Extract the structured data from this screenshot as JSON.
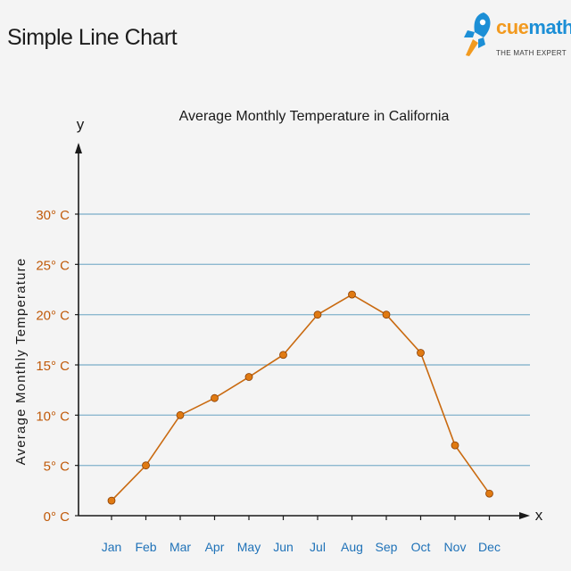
{
  "header": {
    "title": "Simple Line Chart"
  },
  "logo": {
    "word_part1": "cue",
    "word_part2": "math",
    "tagline": "THE MATH EXPERT",
    "colors": {
      "orange": "#f29a1f",
      "blue": "#1c8fd6"
    }
  },
  "chart_data": {
    "type": "line",
    "title": "Average Monthly Temperature in California",
    "xlabel": "x",
    "ylabel_axis": "y",
    "ylabel": "Average Monthly Temperature",
    "categories": [
      "Jan",
      "Feb",
      "Mar",
      "Apr",
      "May",
      "Jun",
      "Jul",
      "Aug",
      "Sep",
      "Oct",
      "Nov",
      "Dec"
    ],
    "series": [
      {
        "values": [
          1.5,
          5,
          10,
          11.7,
          13.8,
          16,
          20,
          22,
          20,
          16.2,
          7,
          2.2
        ]
      }
    ],
    "ylim": [
      0,
      30
    ],
    "yticks": [
      0,
      5,
      10,
      15,
      20,
      25,
      30
    ],
    "ytick_labels": [
      "0° C",
      "5° C",
      "10° C",
      "15° C",
      "20° C",
      "25° C",
      "30° C"
    ],
    "grid": true,
    "colors": {
      "line": "#c96a10",
      "marker": "#e07a12",
      "grid": "#8db8cf",
      "ytick_text": "#c05a0a",
      "xtick_text": "#1f72b8",
      "axis": "#1a1a1a"
    }
  }
}
